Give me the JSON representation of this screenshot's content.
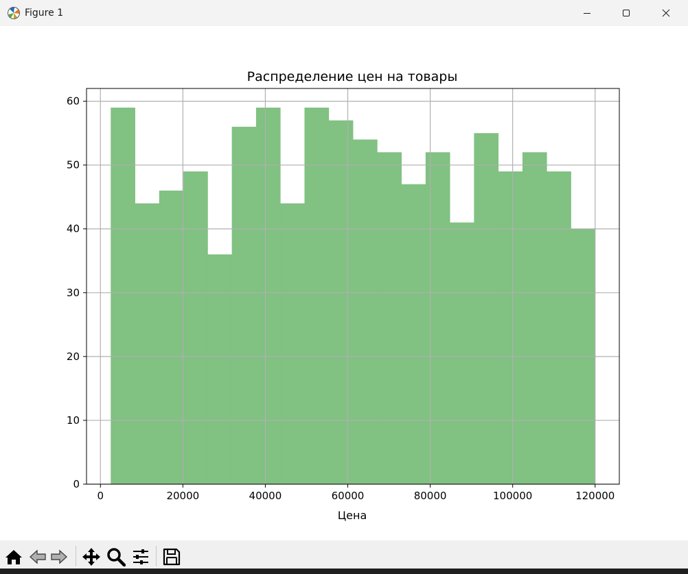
{
  "window": {
    "title": "Figure 1",
    "icons": {
      "app": "matplotlib-logo-icon",
      "minimize": "minimize-icon",
      "maximize": "maximize-icon",
      "close": "close-icon"
    }
  },
  "toolbar": {
    "items": [
      {
        "name": "home-icon"
      },
      {
        "name": "back-arrow-icon"
      },
      {
        "name": "forward-arrow-icon"
      },
      {
        "name": "pan-move-icon"
      },
      {
        "name": "zoom-magnifier-icon"
      },
      {
        "name": "configure-subplots-icon"
      },
      {
        "name": "save-disk-icon"
      }
    ]
  },
  "chart_data": {
    "type": "bar",
    "title": "Распределение цен на товары",
    "xlabel": "Цена",
    "ylabel": "",
    "bin_edges": [
      2500,
      8375,
      14250,
      20125,
      26000,
      31875,
      37750,
      43625,
      49500,
      55375,
      61250,
      67125,
      73000,
      78875,
      84750,
      90625,
      96500,
      102375,
      108250,
      114125,
      120000
    ],
    "values": [
      59,
      44,
      46,
      49,
      36,
      56,
      59,
      44,
      59,
      57,
      54,
      52,
      47,
      52,
      41,
      55,
      49,
      52,
      49,
      40
    ],
    "xlim": [
      -3375,
      125875
    ],
    "ylim": [
      0,
      62
    ],
    "xticks": [
      0,
      20000,
      40000,
      60000,
      80000,
      100000,
      120000
    ],
    "xtick_labels": [
      "0",
      "20000",
      "40000",
      "60000",
      "80000",
      "100000",
      "120000"
    ],
    "yticks": [
      0,
      10,
      20,
      30,
      40,
      50,
      60
    ],
    "ytick_labels": [
      "0",
      "10",
      "20",
      "30",
      "40",
      "50",
      "60"
    ],
    "grid": true,
    "bar_color": "#81c182"
  }
}
